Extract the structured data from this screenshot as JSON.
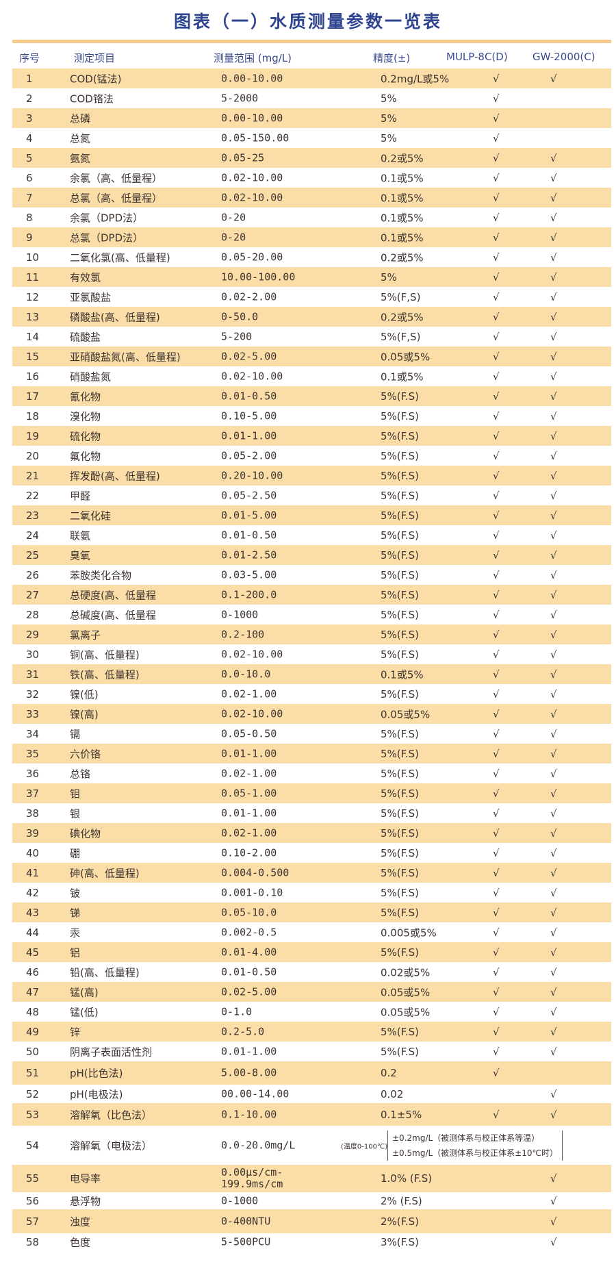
{
  "title": "图表（一）水质测量参数一览表",
  "headers": {
    "num": "序号",
    "item": "测定项目",
    "range": "测量范围 (mg/L)",
    "precision": "精度(±)",
    "mulp": "MULP-8C(D)",
    "gw": "GW-2000(C)"
  },
  "check": "√",
  "rows": [
    [
      "1",
      "COD(锰法)",
      "0.00-10.00",
      "0.2mg/L或5%",
      1,
      1
    ],
    [
      "2",
      "COD铬法",
      "5-2000",
      "5%",
      1,
      0
    ],
    [
      "3",
      "总磷",
      "0.00-10.00",
      "5%",
      1,
      0
    ],
    [
      "4",
      "总氮",
      "0.05-150.00",
      "5%",
      1,
      0
    ],
    [
      "5",
      "氨氮",
      "0.05-25",
      "0.2或5%",
      1,
      1
    ],
    [
      "6",
      "余氯（高、低量程）",
      "0.02-10.00",
      "0.1或5%",
      1,
      1
    ],
    [
      "7",
      "总氯（高、低量程）",
      "0.02-10.00",
      "0.1或5%",
      1,
      1
    ],
    [
      "8",
      "余氯（DPD法）",
      "0-20",
      "0.1或5%",
      1,
      1
    ],
    [
      "9",
      "总氯（DPD法）",
      "0-20",
      "0.1或5%",
      1,
      1
    ],
    [
      "10",
      "二氧化氯(高、低量程)",
      "0.05-20.00",
      "0.2或5%",
      1,
      1
    ],
    [
      "11",
      "有效氯",
      "10.00-100.00",
      "5%",
      1,
      1
    ],
    [
      "12",
      "亚氯酸盐",
      "0.02-2.00",
      "5%(F,S)",
      1,
      1
    ],
    [
      "13",
      "磷酸盐(高、低量程)",
      "0-50.0",
      "0.2或5%",
      1,
      1
    ],
    [
      "14",
      "硫酸盐",
      "5-200",
      "5%(F,S)",
      1,
      1
    ],
    [
      "15",
      "亚硝酸盐氮(高、低量程)",
      "0.02-5.00",
      "0.05或5%",
      1,
      1
    ],
    [
      "16",
      "硝酸盐氮",
      "0.02-10.00",
      "0.1或5%",
      1,
      1
    ],
    [
      "17",
      "氰化物",
      "0.01-0.50",
      "5%(F.S)",
      1,
      1
    ],
    [
      "18",
      "溴化物",
      "0.10-5.00",
      "5%(F.S)",
      1,
      1
    ],
    [
      "19",
      "硫化物",
      "0.01-1.00",
      "5%(F.S)",
      1,
      1
    ],
    [
      "20",
      "氟化物",
      "0.05-2.00",
      "5%(F.S)",
      1,
      1
    ],
    [
      "21",
      "挥发酚(高、低量程)",
      "0.20-10.00",
      "5%(F.S)",
      1,
      1
    ],
    [
      "22",
      "甲醛",
      "0.05-2.50",
      "5%(F.S)",
      1,
      1
    ],
    [
      "23",
      "二氧化硅",
      "0.01-5.00",
      "5%(F.S)",
      1,
      1
    ],
    [
      "24",
      "联氨",
      "0.01-0.50",
      "5%(F.S)",
      1,
      1
    ],
    [
      "25",
      "臭氧",
      "0.01-2.50",
      "5%(F.S)",
      1,
      1
    ],
    [
      "26",
      "苯胺类化合物",
      "0.03-5.00",
      "5%(F.S)",
      1,
      1
    ],
    [
      "27",
      "总硬度(高、低量程",
      "0.1-200.0",
      "5%(F.S)",
      1,
      1
    ],
    [
      "28",
      "总碱度(高、低量程",
      "0-1000",
      "5%(F.S)",
      1,
      1
    ],
    [
      "29",
      "氯离子",
      "0.2-100",
      "5%(F.S)",
      1,
      1
    ],
    [
      "30",
      "铜(高、低量程)",
      "0.02-10.00",
      "5%(F.S)",
      1,
      1
    ],
    [
      "31",
      "铁(高、低量程)",
      "0.0-10.0",
      "0.1或5%",
      1,
      1
    ],
    [
      "32",
      "镍(低)",
      "0.02-1.00",
      "5%(F.S)",
      1,
      1
    ],
    [
      "33",
      "镍(高)",
      "0.02-10.00",
      "0.05或5%",
      1,
      1
    ],
    [
      "34",
      "镉",
      "0.05-0.50",
      "5%(F.S)",
      1,
      1
    ],
    [
      "35",
      "六价铬",
      "0.01-1.00",
      "5%(F.S)",
      1,
      1
    ],
    [
      "36",
      "总铬",
      "0.02-1.00",
      "5%(F.S)",
      1,
      1
    ],
    [
      "37",
      "钼",
      "0.05-1.00",
      "5%(F.S)",
      1,
      1
    ],
    [
      "38",
      "银",
      "0.01-1.00",
      "5%(F.S)",
      1,
      1
    ],
    [
      "39",
      "碘化物",
      "0.02-1.00",
      "5%(F.S)",
      1,
      1
    ],
    [
      "40",
      "硼",
      "0.10-2.00",
      "5%(F.S)",
      1,
      1
    ],
    [
      "41",
      "砷(高、低量程)",
      "0.004-0.500",
      "5%(F.S)",
      1,
      1
    ],
    [
      "42",
      "铍",
      "0.001-0.10",
      "5%(F.S)",
      1,
      1
    ],
    [
      "43",
      "锑",
      "0.05-10.0",
      "5%(F.S)",
      1,
      1
    ],
    [
      "44",
      "汞",
      "0.002-0.5",
      "0.005或5%",
      1,
      1
    ],
    [
      "45",
      "铝",
      "0.01-4.00",
      "5%(F.S)",
      1,
      1
    ],
    [
      "46",
      "铅(高、低量程)",
      "0.01-0.50",
      "0.02或5%",
      1,
      1
    ],
    [
      "47",
      "锰(高)",
      "0.02-5.00",
      "0.05或5%",
      1,
      1
    ],
    [
      "48",
      "锰(低)",
      "0-1.0",
      "0.05或5%",
      1,
      1
    ],
    [
      "49",
      "锌",
      "0.2-5.0",
      "5%(F.S)",
      1,
      1
    ],
    [
      "50",
      "阴离子表面活性剂",
      "0.01-1.00",
      "5%(F.S)",
      1,
      1
    ],
    [
      "51",
      "pH(比色法)",
      "5.00-8.00",
      "0.2",
      1,
      0
    ],
    [
      "52",
      "pH(电极法)",
      "00.00-14.00",
      "0.02",
      0,
      1
    ],
    [
      "53",
      "溶解氧（比色法）",
      "0.1-10.00",
      "0.1±5%",
      1,
      1
    ],
    [
      "54",
      "溶解氧（电极法）",
      "0.0-20.0mg/L",
      "",
      0,
      0
    ],
    [
      "55",
      "电导率",
      "0.00μs/cm-199.9ms/cm",
      "1.0% (F.S)",
      0,
      1
    ],
    [
      "56",
      "悬浮物",
      "0-1000",
      "2% (F.S)",
      0,
      1
    ],
    [
      "57",
      "浊度",
      "0-400NTU",
      "2%(F.S)",
      0,
      1
    ],
    [
      "58",
      "色度",
      "5-500PCU",
      "3%(F.S)",
      0,
      1
    ]
  ],
  "row54_precision": {
    "temp": "(温度0-100℃)",
    "line1": "±0.2mg/L（被测体系与校正体系等温）",
    "line2": "±0.5mg/L（被测体系与校正体系±10℃时）"
  },
  "colors": {
    "title": "#2f4590",
    "shade": "#fbdea7",
    "rule": "#f7c98a"
  }
}
